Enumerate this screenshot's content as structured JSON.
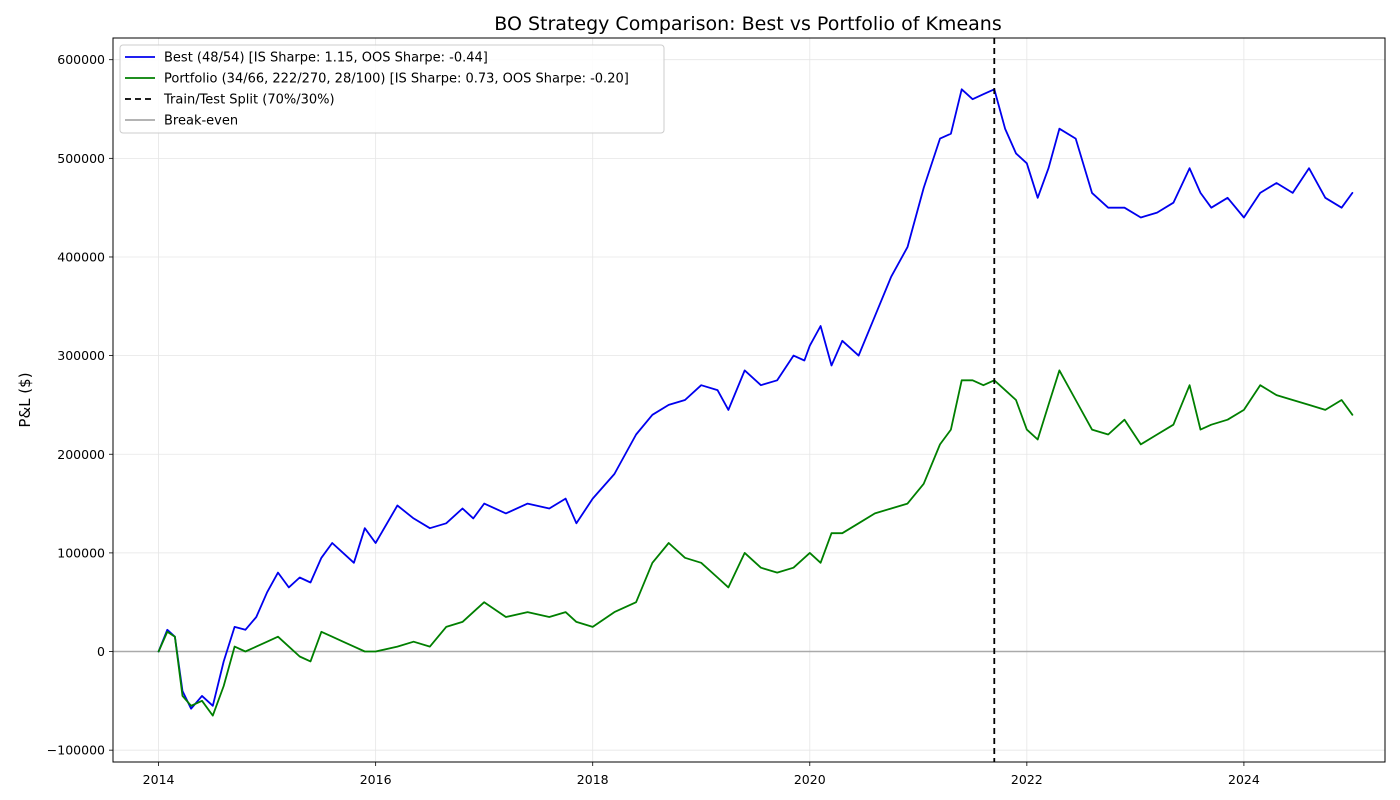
{
  "chart_data": {
    "type": "line",
    "title": "BO Strategy Comparison: Best vs Portfolio of Kmeans",
    "xlabel": "",
    "ylabel": "P&L ($)",
    "xlim": [
      2013.58,
      2025.3
    ],
    "ylim": [
      -112000,
      622000
    ],
    "xticks": [
      2014,
      2016,
      2018,
      2020,
      2022,
      2024
    ],
    "xtick_labels": [
      "2014",
      "2016",
      "2018",
      "2020",
      "2022",
      "2024"
    ],
    "yticks": [
      -100000,
      0,
      100000,
      200000,
      300000,
      400000,
      500000,
      600000
    ],
    "ytick_labels": [
      "−100000",
      "0",
      "100000",
      "200000",
      "300000",
      "400000",
      "500000",
      "600000"
    ],
    "grid": true,
    "legend_position": "top-left",
    "split_x": 2021.7,
    "breakeven_y": 0,
    "series": [
      {
        "name": "Best (48/54) [IS Sharpe: 1.15, OOS Sharpe: -0.44]",
        "color": "#0000ee",
        "x": [
          2014.0,
          2014.08,
          2014.15,
          2014.22,
          2014.3,
          2014.4,
          2014.5,
          2014.6,
          2014.7,
          2014.8,
          2014.9,
          2015.0,
          2015.1,
          2015.2,
          2015.3,
          2015.4,
          2015.5,
          2015.6,
          2015.7,
          2015.8,
          2015.9,
          2016.0,
          2016.2,
          2016.35,
          2016.5,
          2016.65,
          2016.8,
          2016.9,
          2017.0,
          2017.2,
          2017.4,
          2017.6,
          2017.75,
          2017.85,
          2018.0,
          2018.2,
          2018.4,
          2018.55,
          2018.7,
          2018.85,
          2019.0,
          2019.15,
          2019.25,
          2019.4,
          2019.55,
          2019.7,
          2019.85,
          2019.95,
          2020.0,
          2020.1,
          2020.2,
          2020.3,
          2020.45,
          2020.6,
          2020.75,
          2020.9,
          2021.05,
          2021.2,
          2021.3,
          2021.4,
          2021.5,
          2021.6,
          2021.7,
          2021.8,
          2021.9,
          2022.0,
          2022.1,
          2022.2,
          2022.3,
          2022.45,
          2022.6,
          2022.75,
          2022.9,
          2023.05,
          2023.2,
          2023.35,
          2023.5,
          2023.6,
          2023.7,
          2023.85,
          2024.0,
          2024.15,
          2024.3,
          2024.45,
          2024.6,
          2024.75,
          2024.9,
          2025.0
        ],
        "values": [
          0,
          22000,
          15000,
          -40000,
          -58000,
          -45000,
          -55000,
          -10000,
          25000,
          22000,
          35000,
          60000,
          80000,
          65000,
          75000,
          70000,
          95000,
          110000,
          100000,
          90000,
          125000,
          110000,
          148000,
          135000,
          125000,
          130000,
          145000,
          135000,
          150000,
          140000,
          150000,
          145000,
          155000,
          130000,
          155000,
          180000,
          220000,
          240000,
          250000,
          255000,
          270000,
          265000,
          245000,
          285000,
          270000,
          275000,
          300000,
          295000,
          310000,
          330000,
          290000,
          315000,
          300000,
          340000,
          380000,
          410000,
          470000,
          520000,
          525000,
          570000,
          560000,
          565000,
          570000,
          530000,
          505000,
          495000,
          460000,
          490000,
          530000,
          520000,
          465000,
          450000,
          450000,
          440000,
          445000,
          455000,
          490000,
          465000,
          450000,
          460000,
          440000,
          465000,
          475000,
          465000,
          490000,
          460000,
          450000,
          465000
        ]
      },
      {
        "name": "Portfolio (34/66, 222/270, 28/100) [IS Sharpe: 0.73, OOS Sharpe: -0.20]",
        "color": "#007f00",
        "x": [
          2014.0,
          2014.08,
          2014.15,
          2014.22,
          2014.3,
          2014.4,
          2014.5,
          2014.6,
          2014.7,
          2014.8,
          2014.9,
          2015.0,
          2015.1,
          2015.2,
          2015.3,
          2015.4,
          2015.5,
          2015.6,
          2015.7,
          2015.8,
          2015.9,
          2016.0,
          2016.2,
          2016.35,
          2016.5,
          2016.65,
          2016.8,
          2016.9,
          2017.0,
          2017.2,
          2017.4,
          2017.6,
          2017.75,
          2017.85,
          2018.0,
          2018.2,
          2018.4,
          2018.55,
          2018.7,
          2018.85,
          2019.0,
          2019.15,
          2019.25,
          2019.4,
          2019.55,
          2019.7,
          2019.85,
          2019.95,
          2020.0,
          2020.1,
          2020.2,
          2020.3,
          2020.45,
          2020.6,
          2020.75,
          2020.9,
          2021.05,
          2021.2,
          2021.3,
          2021.4,
          2021.5,
          2021.6,
          2021.7,
          2021.8,
          2021.9,
          2022.0,
          2022.1,
          2022.2,
          2022.3,
          2022.45,
          2022.6,
          2022.75,
          2022.9,
          2023.05,
          2023.2,
          2023.35,
          2023.5,
          2023.6,
          2023.7,
          2023.85,
          2024.0,
          2024.15,
          2024.3,
          2024.45,
          2024.6,
          2024.75,
          2024.9,
          2025.0
        ],
        "values": [
          0,
          20000,
          15000,
          -45000,
          -55000,
          -50000,
          -65000,
          -35000,
          5000,
          0,
          5000,
          10000,
          15000,
          5000,
          -5000,
          -10000,
          20000,
          15000,
          10000,
          5000,
          0,
          0,
          5000,
          10000,
          5000,
          25000,
          30000,
          40000,
          50000,
          35000,
          40000,
          35000,
          40000,
          30000,
          25000,
          40000,
          50000,
          90000,
          110000,
          95000,
          90000,
          75000,
          65000,
          100000,
          85000,
          80000,
          85000,
          95000,
          100000,
          90000,
          120000,
          120000,
          130000,
          140000,
          145000,
          150000,
          170000,
          210000,
          225000,
          275000,
          275000,
          270000,
          275000,
          265000,
          255000,
          225000,
          215000,
          250000,
          285000,
          255000,
          225000,
          220000,
          235000,
          210000,
          220000,
          230000,
          270000,
          225000,
          230000,
          235000,
          245000,
          270000,
          260000,
          255000,
          250000,
          245000,
          255000,
          240000
        ]
      }
    ],
    "legend": {
      "entries": [
        {
          "label": "Best (48/54) [IS Sharpe: 1.15, OOS Sharpe: -0.44]",
          "color": "#0000ee",
          "style": "solid"
        },
        {
          "label": "Portfolio (34/66, 222/270, 28/100) [IS Sharpe: 0.73, OOS Sharpe: -0.20]",
          "color": "#007f00",
          "style": "solid"
        },
        {
          "label": "Train/Test Split (70%/30%)",
          "color": "#000000",
          "style": "dashed"
        },
        {
          "label": "Break-even",
          "color": "#aaaaaa",
          "style": "solid"
        }
      ]
    }
  }
}
